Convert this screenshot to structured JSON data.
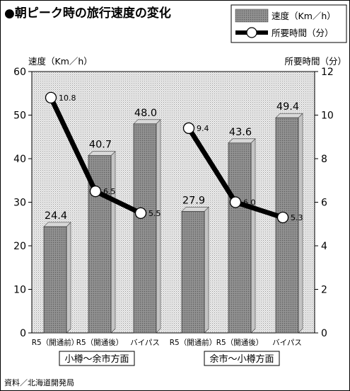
{
  "chart_data": {
    "type": "bar",
    "title": "●朝ピーク時の旅行速度の変化",
    "source": "資料／北海道開発局",
    "categories": [
      "R5（開通前）",
      "R5（開通後）",
      "バイパス",
      "R5（開通前）",
      "R5（開通後）",
      "バイパス"
    ],
    "groups": [
      {
        "label": "小樽〜余市方面",
        "categories": [
          "R5（開通前）",
          "R5（開通後）",
          "バイパス"
        ]
      },
      {
        "label": "余市〜小樽方面",
        "categories": [
          "R5（開通前）",
          "R5（開通後）",
          "バイパス"
        ]
      }
    ],
    "series": [
      {
        "name": "速度（Km／h）",
        "type": "bar",
        "axis": "left",
        "values": [
          24.4,
          40.7,
          48.0,
          27.9,
          43.6,
          49.4
        ],
        "labels": [
          "24.4",
          "40.7",
          "48.0",
          "27.9",
          "43.6",
          "49.4"
        ]
      },
      {
        "name": "所要時間（分）",
        "type": "line",
        "axis": "right",
        "values": [
          10.8,
          6.5,
          5.5,
          9.4,
          6.0,
          5.3
        ],
        "labels": [
          "10.8",
          "6.5",
          "5.5",
          "9.4",
          "6.0",
          "5.3"
        ]
      }
    ],
    "ylabel_left": "速度（Km／h）",
    "ylabel_right": "所要時間（分）",
    "ylim_left": [
      0,
      60
    ],
    "ylim_right": [
      0,
      12
    ],
    "yticks_left": [
      0,
      10,
      20,
      30,
      40,
      50,
      60
    ],
    "yticks_right": [
      0,
      2,
      4,
      6,
      8,
      10,
      12
    ],
    "grid": false,
    "legend_position": "top-right",
    "colors": {
      "bar_front": "#8a8a8a",
      "bar_side": "#c4c4c4",
      "bar_top": "#d8d8d8",
      "plot_bg": "#e6e6e6",
      "line": "#000000",
      "marker_fill": "#ffffff"
    }
  }
}
